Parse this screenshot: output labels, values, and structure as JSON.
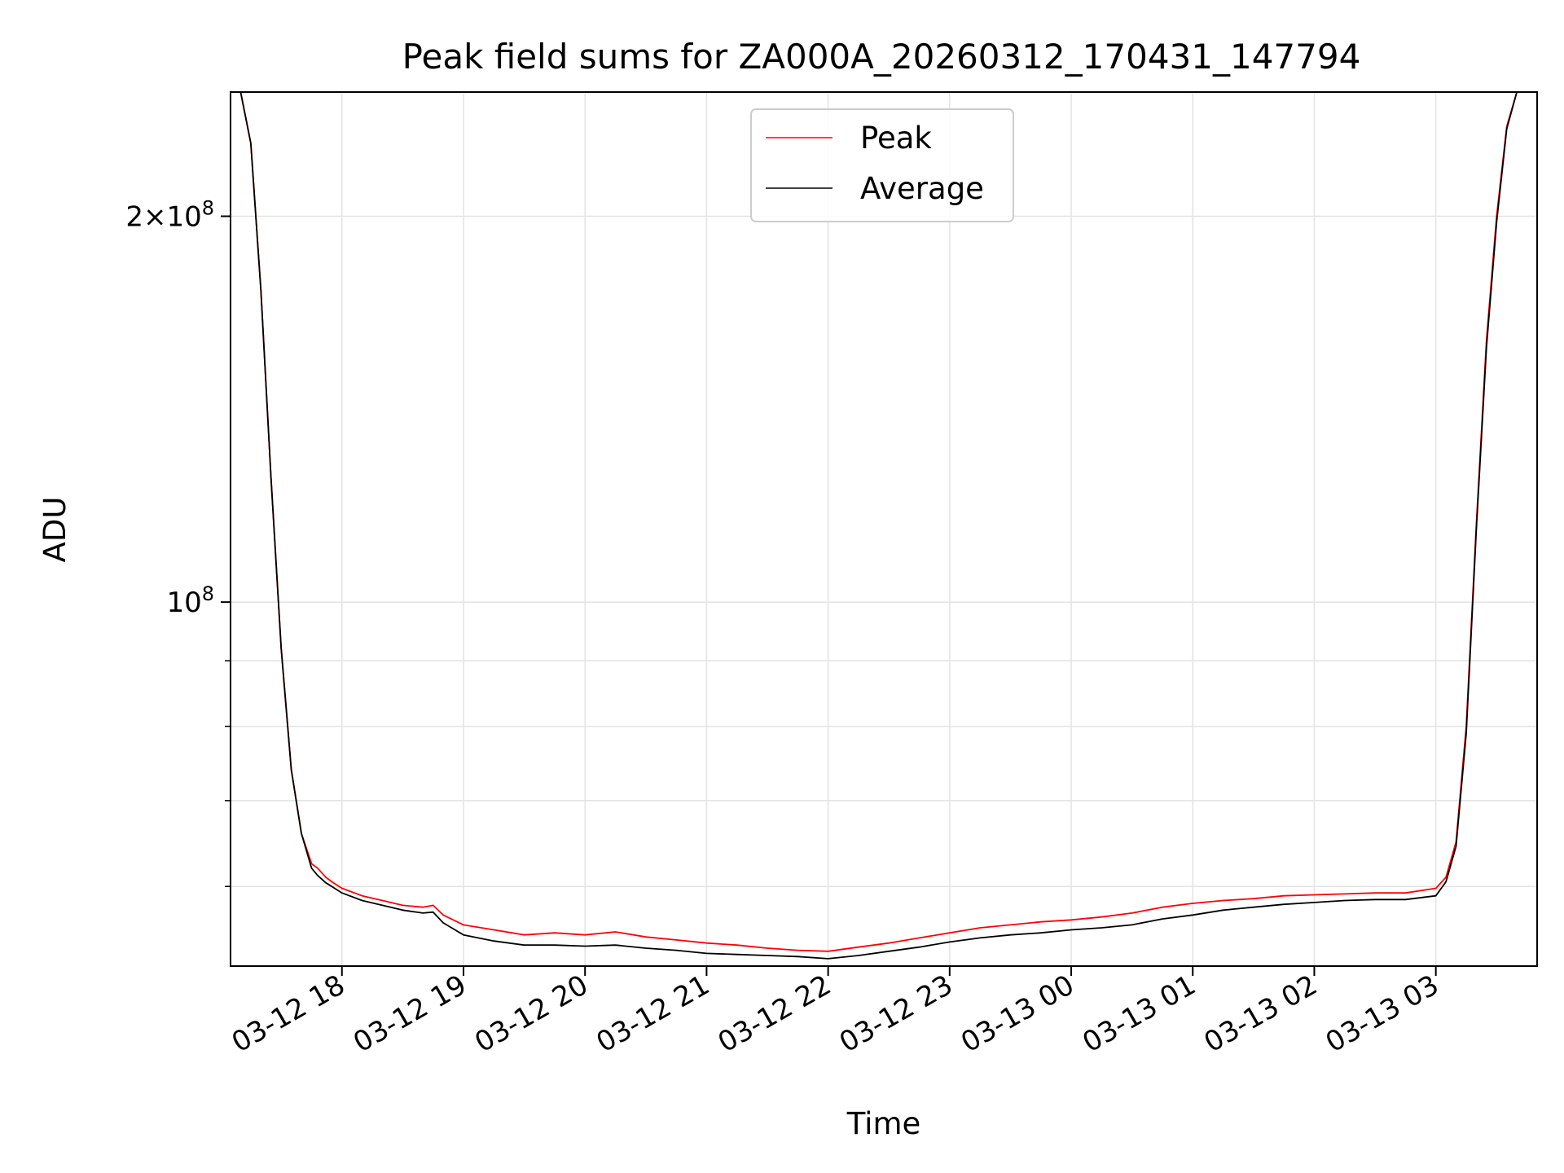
{
  "chart_data": {
    "type": "line",
    "title": "Peak field sums for ZA000A_20260312_170431_147794",
    "xlabel": "Time",
    "ylabel": "ADU",
    "y_scale": "log",
    "x_range": [
      "03-12 17:05",
      "03-13 03:50"
    ],
    "ylim": [
      52000000,
      250000000
    ],
    "grid": true,
    "legend_position": "upper-center",
    "x_ticks": [
      "03-12 18",
      "03-12 19",
      "03-12 20",
      "03-12 21",
      "03-12 22",
      "03-12 23",
      "03-13 00",
      "03-13 01",
      "03-13 02",
      "03-13 03"
    ],
    "y_ticks": [
      {
        "value": 200000000,
        "mantissa": "2",
        "times": "×",
        "base": "10",
        "exp": "8"
      },
      {
        "value": 100000000,
        "mantissa": "",
        "times": "",
        "base": "10",
        "exp": "8"
      }
    ],
    "y_minor_ticks": [
      60000000,
      70000000,
      80000000,
      90000000
    ],
    "series": [
      {
        "name": "Peak",
        "color": "#ff0000",
        "x": [
          "03-12 17:05",
          "03-12 17:10",
          "03-12 17:15",
          "03-12 17:20",
          "03-12 17:25",
          "03-12 17:30",
          "03-12 17:35",
          "03-12 17:40",
          "03-12 17:45",
          "03-12 17:48",
          "03-12 17:50",
          "03-12 17:52",
          "03-12 17:55",
          "03-12 18:00",
          "03-12 18:10",
          "03-12 18:20",
          "03-12 18:30",
          "03-12 18:40",
          "03-12 18:45",
          "03-12 18:50",
          "03-12 19:00",
          "03-12 19:15",
          "03-12 19:30",
          "03-12 19:45",
          "03-12 20:00",
          "03-12 20:15",
          "03-12 20:30",
          "03-12 20:45",
          "03-12 21:00",
          "03-12 21:15",
          "03-12 21:30",
          "03-12 21:45",
          "03-12 22:00",
          "03-12 22:15",
          "03-12 22:30",
          "03-12 22:45",
          "03-12 23:00",
          "03-12 23:15",
          "03-12 23:30",
          "03-12 23:45",
          "03-13 00:00",
          "03-13 00:15",
          "03-13 00:30",
          "03-13 00:45",
          "03-13 01:00",
          "03-13 01:15",
          "03-13 01:30",
          "03-13 01:45",
          "03-13 02:00",
          "03-13 02:15",
          "03-13 02:30",
          "03-13 02:45",
          "03-13 03:00",
          "03-13 03:05",
          "03-13 03:10",
          "03-13 03:15",
          "03-13 03:20",
          "03-13 03:25",
          "03-13 03:30",
          "03-13 03:35",
          "03-13 03:40",
          "03-13 03:45",
          "03-13 03:50"
        ],
        "y": [
          250000000,
          250000000,
          228000000,
          175000000,
          125000000,
          92000000,
          74000000,
          66000000,
          62500000,
          62000000,
          61500000,
          61000000,
          60500000,
          59800000,
          59000000,
          58500000,
          58000000,
          57800000,
          58000000,
          57000000,
          56000000,
          55500000,
          55000000,
          55200000,
          55000000,
          55300000,
          54800000,
          54500000,
          54200000,
          54000000,
          53700000,
          53500000,
          53400000,
          53800000,
          54200000,
          54700000,
          55200000,
          55700000,
          56000000,
          56300000,
          56500000,
          56800000,
          57200000,
          57800000,
          58200000,
          58500000,
          58700000,
          59000000,
          59100000,
          59200000,
          59300000,
          59300000,
          59800000,
          61000000,
          65000000,
          80000000,
          115000000,
          160000000,
          200000000,
          235000000,
          250000000,
          250000000,
          250000000
        ]
      },
      {
        "name": "Average",
        "color": "#000000",
        "x": [
          "03-12 17:05",
          "03-12 17:10",
          "03-12 17:15",
          "03-12 17:20",
          "03-12 17:25",
          "03-12 17:30",
          "03-12 17:35",
          "03-12 17:40",
          "03-12 17:45",
          "03-12 17:48",
          "03-12 17:50",
          "03-12 17:52",
          "03-12 17:55",
          "03-12 18:00",
          "03-12 18:10",
          "03-12 18:20",
          "03-12 18:30",
          "03-12 18:40",
          "03-12 18:45",
          "03-12 18:50",
          "03-12 19:00",
          "03-12 19:15",
          "03-12 19:30",
          "03-12 19:45",
          "03-12 20:00",
          "03-12 20:15",
          "03-12 20:30",
          "03-12 20:45",
          "03-12 21:00",
          "03-12 21:15",
          "03-12 21:30",
          "03-12 21:45",
          "03-12 22:00",
          "03-12 22:15",
          "03-12 22:30",
          "03-12 22:45",
          "03-12 23:00",
          "03-12 23:15",
          "03-12 23:30",
          "03-12 23:45",
          "03-13 00:00",
          "03-13 00:15",
          "03-13 00:30",
          "03-13 00:45",
          "03-13 01:00",
          "03-13 01:15",
          "03-13 01:30",
          "03-13 01:45",
          "03-13 02:00",
          "03-13 02:15",
          "03-13 02:30",
          "03-13 02:45",
          "03-13 03:00",
          "03-13 03:05",
          "03-13 03:10",
          "03-13 03:15",
          "03-13 03:20",
          "03-13 03:25",
          "03-13 03:30",
          "03-13 03:35",
          "03-13 03:40",
          "03-13 03:45",
          "03-13 03:50"
        ],
        "y": [
          250000000,
          250000000,
          228000000,
          175000000,
          125000000,
          92000000,
          74000000,
          66000000,
          62000000,
          61200000,
          60800000,
          60400000,
          60000000,
          59300000,
          58500000,
          58000000,
          57500000,
          57200000,
          57300000,
          56200000,
          55000000,
          54400000,
          54000000,
          54000000,
          53900000,
          54000000,
          53700000,
          53500000,
          53200000,
          53100000,
          53000000,
          52900000,
          52700000,
          53000000,
          53400000,
          53800000,
          54300000,
          54700000,
          55000000,
          55200000,
          55500000,
          55700000,
          56000000,
          56600000,
          57000000,
          57500000,
          57800000,
          58100000,
          58300000,
          58500000,
          58600000,
          58600000,
          59000000,
          60500000,
          64500000,
          79000000,
          114000000,
          158000000,
          198000000,
          234000000,
          250000000,
          250000000,
          250000000
        ]
      }
    ]
  }
}
